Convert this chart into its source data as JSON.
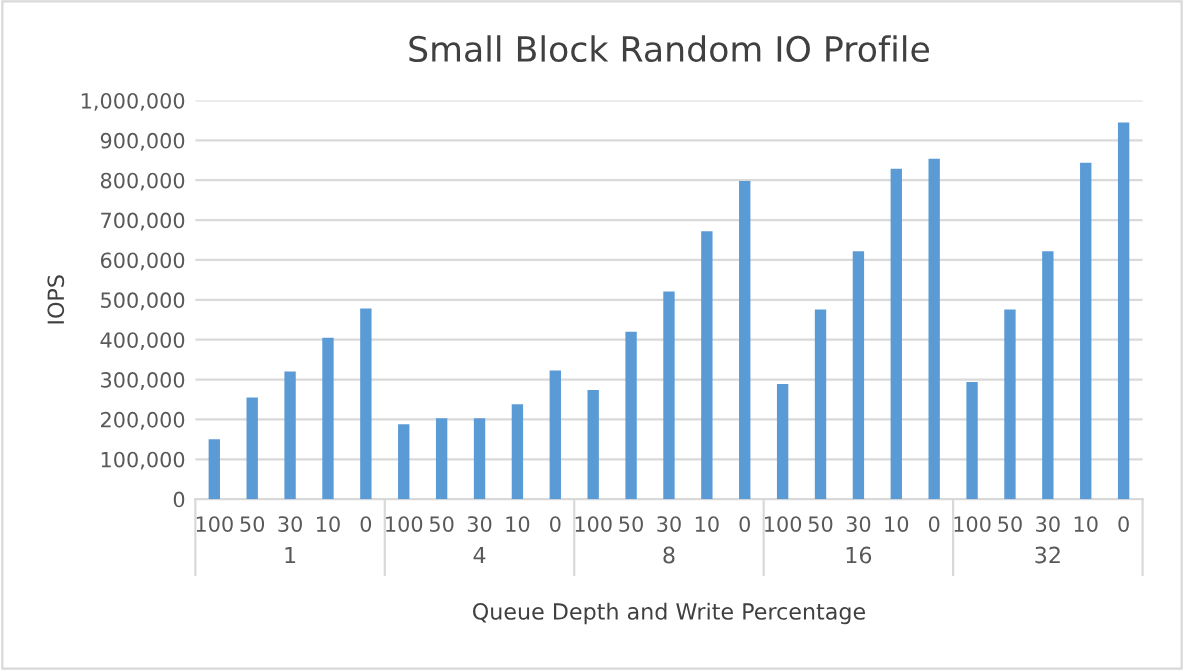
{
  "chart_data": {
    "type": "bar",
    "title": "Small Block Random IO Profile",
    "xlabel": "Queue Depth and Write Percentage",
    "ylabel": "IOPS",
    "categories": [
      "100",
      "50",
      "30",
      "10",
      "0",
      "100",
      "50",
      "30",
      "10",
      "0",
      "100",
      "50",
      "30",
      "10",
      "0",
      "100",
      "50",
      "30",
      "10",
      "0",
      "100",
      "50",
      "30",
      "10",
      "0"
    ],
    "values": [
      150000,
      255000,
      320000,
      405000,
      478000,
      188000,
      203000,
      203000,
      238000,
      323000,
      274000,
      420000,
      521000,
      672000,
      798000,
      289000,
      476000,
      622000,
      829000,
      854000,
      294000,
      476000,
      622000,
      844000,
      945000
    ],
    "color": "#5b9bd5",
    "ylim": [
      0,
      1000000
    ],
    "yticks": [
      {
        "value": 0,
        "label": "0"
      },
      {
        "value": 100000,
        "label": "100,000"
      },
      {
        "value": 200000,
        "label": "200,000"
      },
      {
        "value": 300000,
        "label": "300,000"
      },
      {
        "value": 400000,
        "label": "400,000"
      },
      {
        "value": 500000,
        "label": "500,000"
      },
      {
        "value": 600000,
        "label": "600,000"
      },
      {
        "value": 700000,
        "label": "700,000"
      },
      {
        "value": 800000,
        "label": "800,000"
      },
      {
        "value": 900000,
        "label": "900,000"
      },
      {
        "value": 1000000,
        "label": "1,000,000"
      }
    ],
    "grid": "y",
    "annotations": [
      "1",
      "4",
      "8",
      "16",
      "32"
    ]
  }
}
